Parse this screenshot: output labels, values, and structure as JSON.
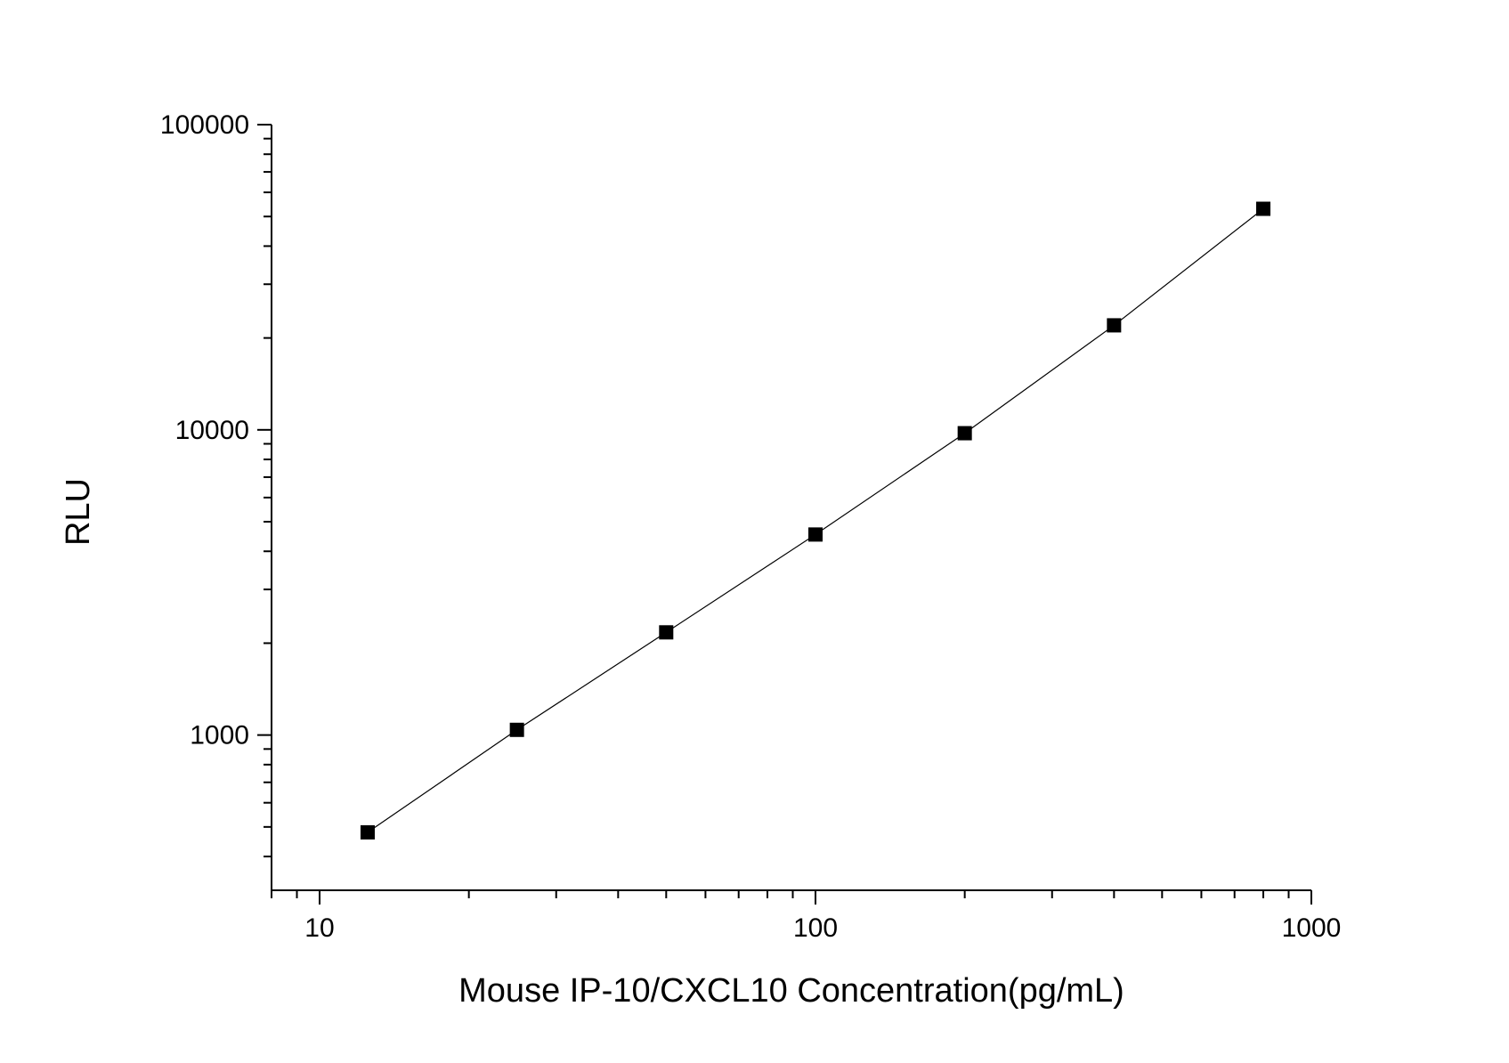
{
  "chart_data": {
    "type": "scatter",
    "title": "",
    "xlabel": "Mouse IP-10/CXCL10 Concentration(pg/mL)",
    "ylabel": "RLU",
    "x_scale": "log",
    "y_scale": "log",
    "xlim": [
      8,
      1000
    ],
    "ylim": [
      310,
      100000
    ],
    "x_ticks": [
      {
        "value": 10,
        "label": "10"
      },
      {
        "value": 100,
        "label": "100"
      },
      {
        "value": 1000,
        "label": "1000"
      }
    ],
    "y_ticks": [
      {
        "value": 1000,
        "label": "1000"
      },
      {
        "value": 10000,
        "label": "10000"
      },
      {
        "value": 100000,
        "label": "100000"
      }
    ],
    "grid": false,
    "legend": "none",
    "line_color": "#000000",
    "marker_color": "#000000",
    "marker": "square",
    "series": [
      {
        "x": [
          12.5,
          25,
          50,
          100,
          200,
          400,
          800
        ],
        "y": [
          480,
          1040,
          2170,
          4540,
          9750,
          22000,
          53000
        ]
      }
    ]
  }
}
